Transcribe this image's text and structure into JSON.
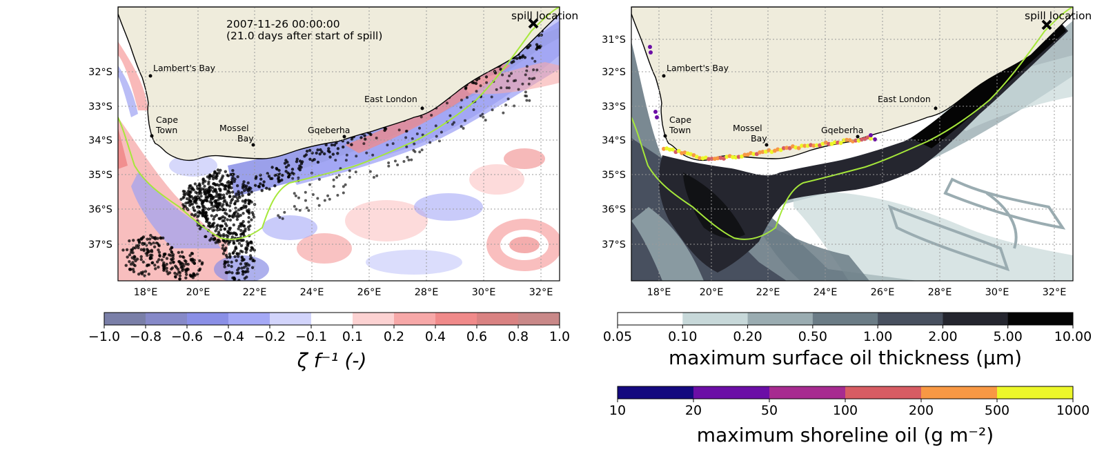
{
  "left_map": {
    "timestamp": "2007-11-26 00:00:00",
    "elapsed": "(21.0 days after start of spill)",
    "spill_label": "spill location"
  },
  "right_map": {
    "spill_label": "spill location"
  },
  "lat_ticks": [
    "31°S",
    "32°S",
    "33°S",
    "34°S",
    "35°S",
    "36°S",
    "37°S"
  ],
  "lon_ticks": [
    "18°E",
    "20°E",
    "22°E",
    "24°E",
    "26°E",
    "28°E",
    "30°E",
    "32°E"
  ],
  "towns": [
    {
      "id": "lamberts-bay",
      "lines": [
        "Lambert's Bay"
      ]
    },
    {
      "id": "cape-town",
      "lines": [
        "Cape",
        "Town"
      ]
    },
    {
      "id": "mossel-bay",
      "lines": [
        "Mossel",
        "Bay"
      ]
    },
    {
      "id": "gqeberha",
      "lines": [
        "Gqeberha"
      ]
    },
    {
      "id": "east-london",
      "lines": [
        "East London"
      ]
    }
  ],
  "colors": {
    "land": "#efecdc",
    "isobath": "#a6e83a",
    "grid": "#9a9a9a",
    "coast": "#000000"
  },
  "vorticity_colorbar": {
    "title": "ζ f⁻¹ (-)",
    "ticks": [
      "−1.0",
      "−0.8",
      "−0.6",
      "−0.4",
      "−0.2",
      "−0.1",
      "0.1",
      "0.2",
      "0.4",
      "0.6",
      "0.8",
      "1.0"
    ],
    "colors": [
      "#7a7fa8",
      "#8689c8",
      "#8a8fe6",
      "#a5a9f6",
      "#d2d4fb",
      "#ffffff",
      "#fcd2d2",
      "#f7a8a8",
      "#f08a8a",
      "#d98282",
      "#c98888"
    ]
  },
  "thickness_colorbar": {
    "title": "maximum surface oil thickness (μm)",
    "ticks": [
      "0.05",
      "0.10",
      "0.20",
      "0.50",
      "1.00",
      "2.00",
      "5.00",
      "10.00"
    ],
    "colors": [
      "#ffffff",
      "#c7d8d9",
      "#9aacb1",
      "#6b7c86",
      "#48505f",
      "#25262f",
      "#050505"
    ]
  },
  "shoreline_colorbar": {
    "title": "maximum shoreline oil (g m⁻²)",
    "ticks": [
      "10",
      "20",
      "50",
      "100",
      "200",
      "500",
      "1000"
    ],
    "colors": [
      "#14097f",
      "#6b0ea6",
      "#a72b90",
      "#d75c63",
      "#f89844",
      "#ecf72a"
    ]
  }
}
